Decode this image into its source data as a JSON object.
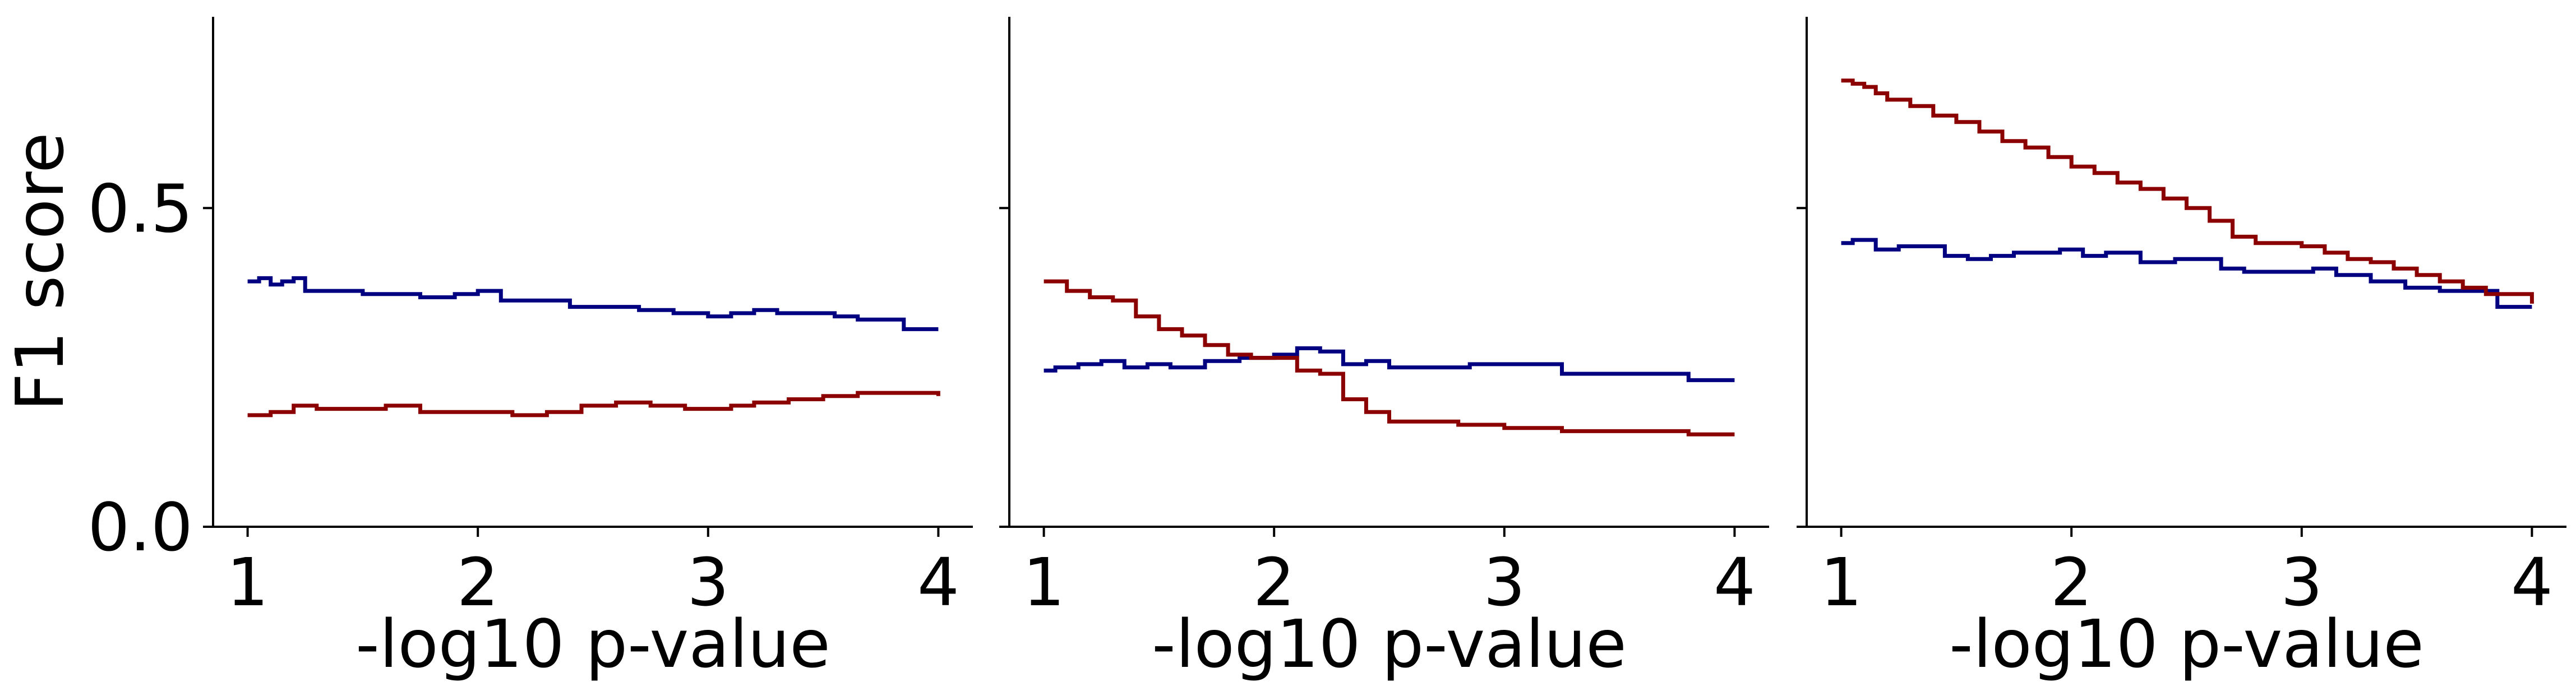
{
  "ylabel": "F1 score",
  "colors": {
    "navy": "#000080",
    "darkred": "#8b0000"
  },
  "chart_data": [
    {
      "type": "line",
      "xlabel": "-log10 p-value",
      "ylabel": "F1 score",
      "xlim": [
        0.85,
        4.15
      ],
      "ylim": [
        0.0,
        0.8
      ],
      "xticks": [
        "1",
        "2",
        "3",
        "4"
      ],
      "yticks": [
        "0.0",
        "0.5"
      ],
      "grid": false,
      "series": [
        {
          "color": "#000080",
          "style": "step",
          "x": [
            1.0,
            1.05,
            1.1,
            1.15,
            1.2,
            1.25,
            1.35,
            1.5,
            1.6,
            1.75,
            1.9,
            2.0,
            2.1,
            2.25,
            2.4,
            2.55,
            2.7,
            2.85,
            3.0,
            3.1,
            3.2,
            3.3,
            3.45,
            3.55,
            3.65,
            3.75,
            3.85,
            4.0
          ],
          "y": [
            0.385,
            0.39,
            0.38,
            0.385,
            0.39,
            0.37,
            0.37,
            0.365,
            0.365,
            0.36,
            0.365,
            0.37,
            0.355,
            0.355,
            0.345,
            0.345,
            0.34,
            0.335,
            0.33,
            0.335,
            0.34,
            0.335,
            0.335,
            0.33,
            0.325,
            0.325,
            0.31,
            0.31
          ]
        },
        {
          "color": "#8b0000",
          "style": "step",
          "x": [
            1.0,
            1.1,
            1.2,
            1.3,
            1.45,
            1.6,
            1.75,
            1.9,
            2.0,
            2.15,
            2.3,
            2.45,
            2.6,
            2.75,
            2.9,
            3.0,
            3.1,
            3.2,
            3.35,
            3.5,
            3.65,
            3.8,
            4.0
          ],
          "y": [
            0.175,
            0.18,
            0.19,
            0.185,
            0.185,
            0.19,
            0.18,
            0.18,
            0.18,
            0.175,
            0.18,
            0.19,
            0.195,
            0.19,
            0.185,
            0.185,
            0.19,
            0.195,
            0.2,
            0.205,
            0.21,
            0.21,
            0.205
          ]
        }
      ]
    },
    {
      "type": "line",
      "xlabel": "-log10 p-value",
      "xlim": [
        0.85,
        4.15
      ],
      "ylim": [
        0.0,
        0.8
      ],
      "xticks": [
        "1",
        "2",
        "3",
        "4"
      ],
      "grid": false,
      "series": [
        {
          "color": "#000080",
          "style": "step",
          "x": [
            1.0,
            1.05,
            1.15,
            1.25,
            1.35,
            1.45,
            1.55,
            1.7,
            1.85,
            2.0,
            2.1,
            2.2,
            2.3,
            2.4,
            2.5,
            2.6,
            2.7,
            2.85,
            3.0,
            3.1,
            3.25,
            3.4,
            3.55,
            3.7,
            3.8,
            4.0
          ],
          "y": [
            0.245,
            0.25,
            0.255,
            0.26,
            0.25,
            0.255,
            0.25,
            0.26,
            0.265,
            0.27,
            0.28,
            0.275,
            0.255,
            0.26,
            0.25,
            0.25,
            0.25,
            0.255,
            0.255,
            0.255,
            0.24,
            0.24,
            0.24,
            0.24,
            0.23,
            0.23
          ]
        },
        {
          "color": "#8b0000",
          "style": "step",
          "x": [
            1.0,
            1.1,
            1.2,
            1.3,
            1.4,
            1.5,
            1.6,
            1.7,
            1.8,
            1.9,
            2.0,
            2.1,
            2.2,
            2.3,
            2.4,
            2.5,
            2.6,
            2.8,
            3.0,
            3.1,
            3.25,
            3.4,
            3.6,
            3.8,
            4.0
          ],
          "y": [
            0.385,
            0.37,
            0.36,
            0.355,
            0.33,
            0.31,
            0.3,
            0.285,
            0.27,
            0.265,
            0.265,
            0.245,
            0.24,
            0.2,
            0.18,
            0.165,
            0.165,
            0.16,
            0.155,
            0.155,
            0.15,
            0.15,
            0.15,
            0.145,
            0.145
          ]
        }
      ]
    },
    {
      "type": "line",
      "xlabel": "-log10 p-value",
      "xlim": [
        0.85,
        4.15
      ],
      "ylim": [
        0.0,
        0.8
      ],
      "xticks": [
        "1",
        "2",
        "3",
        "4"
      ],
      "grid": false,
      "series": [
        {
          "color": "#000080",
          "style": "step",
          "x": [
            1.0,
            1.05,
            1.15,
            1.25,
            1.35,
            1.45,
            1.55,
            1.65,
            1.75,
            1.85,
            1.95,
            2.05,
            2.15,
            2.3,
            2.45,
            2.55,
            2.65,
            2.75,
            2.9,
            3.05,
            3.15,
            3.3,
            3.45,
            3.6,
            3.75,
            3.85,
            4.0
          ],
          "y": [
            0.445,
            0.45,
            0.435,
            0.44,
            0.44,
            0.425,
            0.42,
            0.425,
            0.43,
            0.43,
            0.435,
            0.425,
            0.43,
            0.415,
            0.42,
            0.42,
            0.405,
            0.4,
            0.4,
            0.405,
            0.395,
            0.385,
            0.375,
            0.37,
            0.37,
            0.345,
            0.345
          ]
        },
        {
          "color": "#8b0000",
          "style": "step",
          "x": [
            1.0,
            1.05,
            1.1,
            1.15,
            1.2,
            1.3,
            1.4,
            1.5,
            1.6,
            1.7,
            1.8,
            1.9,
            2.0,
            2.1,
            2.2,
            2.3,
            2.4,
            2.5,
            2.6,
            2.7,
            2.8,
            3.0,
            3.1,
            3.2,
            3.3,
            3.4,
            3.5,
            3.6,
            3.7,
            3.8,
            4.0
          ],
          "y": [
            0.7,
            0.695,
            0.69,
            0.68,
            0.67,
            0.66,
            0.645,
            0.635,
            0.62,
            0.605,
            0.595,
            0.58,
            0.565,
            0.555,
            0.54,
            0.53,
            0.515,
            0.5,
            0.48,
            0.455,
            0.445,
            0.44,
            0.43,
            0.42,
            0.415,
            0.405,
            0.395,
            0.385,
            0.375,
            0.365,
            0.35
          ]
        }
      ]
    }
  ]
}
